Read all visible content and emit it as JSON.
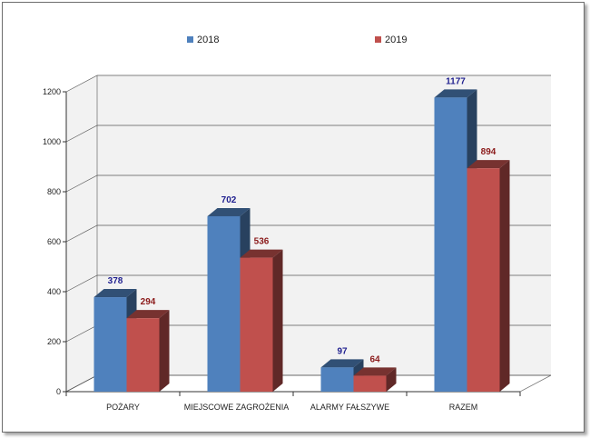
{
  "chart_data": {
    "type": "bar",
    "title": "",
    "xlabel": "",
    "ylabel": "",
    "categories": [
      "POŻARY",
      "MIEJSCOWE ZAGROŻENIA",
      "ALARMY FAŁSZYWE",
      "RAZEM"
    ],
    "series": [
      {
        "name": "2018",
        "values": [
          378,
          702,
          97,
          1177
        ],
        "color": "#4f81bd",
        "label_color": "#1f1f8f"
      },
      {
        "name": "2019",
        "values": [
          294,
          536,
          64,
          894
        ],
        "color": "#c0504d",
        "label_color": "#8b1a1a"
      }
    ],
    "ylim": [
      0,
      1200
    ],
    "yticks": [
      0,
      200,
      400,
      600,
      800,
      1000,
      1200
    ],
    "grid": true,
    "legend": "top"
  }
}
